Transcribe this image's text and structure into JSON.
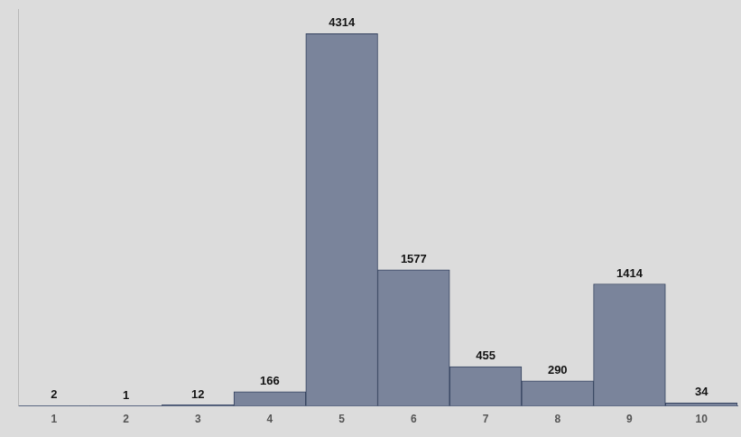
{
  "chart_data": {
    "type": "bar",
    "categories": [
      "1",
      "2",
      "3",
      "4",
      "5",
      "6",
      "7",
      "8",
      "9",
      "10"
    ],
    "values": [
      2,
      1,
      12,
      166,
      4314,
      1577,
      455,
      290,
      1414,
      34
    ],
    "color": "#7a849b",
    "ylim": [
      0,
      4600
    ],
    "tick_labels": "x",
    "data_labels": true,
    "grid": false
  }
}
